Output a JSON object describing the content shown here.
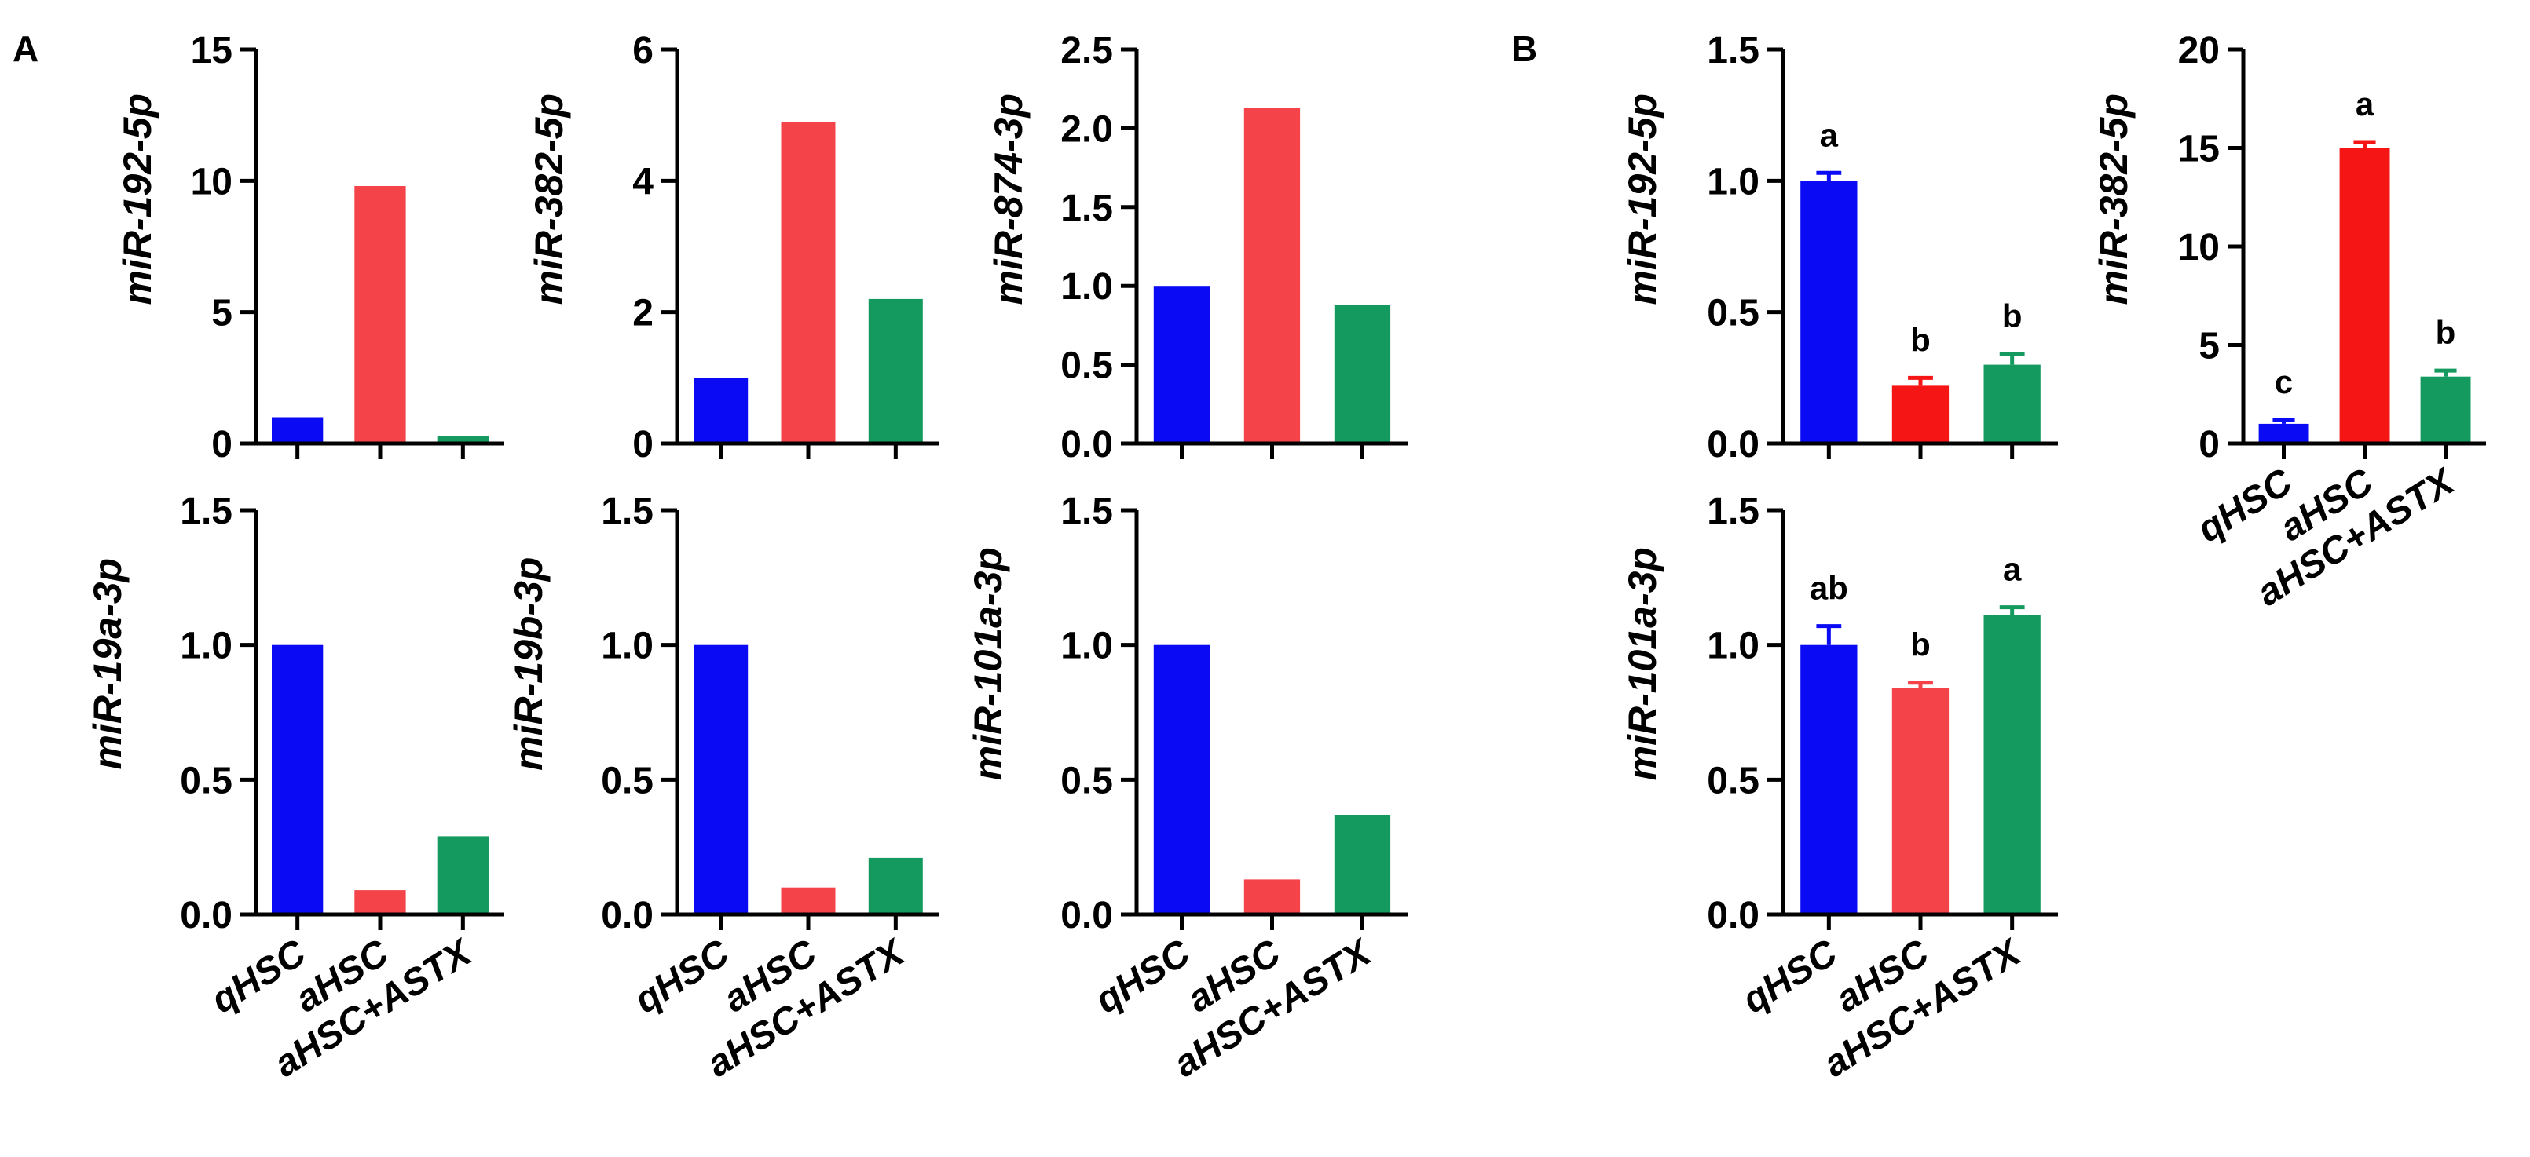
{
  "figure": {
    "panel_labels": [
      "A",
      "B"
    ],
    "categories": [
      "qHSC",
      "aHSC",
      "aHSC+ASTX"
    ],
    "colors": {
      "qHSC": "#0A0AF5",
      "aHSC": "#F5434A",
      "aHSC_bright": "#F51515",
      "astx": "#149A5E",
      "axis": "#000000"
    }
  },
  "chart_data": [
    {
      "panel": "A",
      "type": "bar",
      "ylabel": "miR-192-5p",
      "categories": [
        "qHSC",
        "aHSC",
        "aHSC+ASTX"
      ],
      "values": [
        1.0,
        9.8,
        0.3
      ],
      "ylim": [
        0,
        15
      ],
      "yticks": [
        "0",
        "5",
        "10",
        "15"
      ],
      "show_category_labels": false,
      "grid": false
    },
    {
      "panel": "A",
      "type": "bar",
      "ylabel": "miR-382-5p",
      "categories": [
        "qHSC",
        "aHSC",
        "aHSC+ASTX"
      ],
      "values": [
        1.0,
        4.9,
        2.2
      ],
      "ylim": [
        0,
        6
      ],
      "yticks": [
        "0",
        "2",
        "4",
        "6"
      ],
      "show_category_labels": false,
      "grid": false
    },
    {
      "panel": "A",
      "type": "bar",
      "ylabel": "miR-874-3p",
      "categories": [
        "qHSC",
        "aHSC",
        "aHSC+ASTX"
      ],
      "values": [
        1.0,
        2.13,
        0.88
      ],
      "ylim": [
        0,
        2.5
      ],
      "yticks": [
        "0.0",
        "0.5",
        "1.0",
        "1.5",
        "2.0",
        "2.5"
      ],
      "show_category_labels": false,
      "grid": false
    },
    {
      "panel": "A",
      "type": "bar",
      "ylabel": "miR-19a-3p",
      "categories": [
        "qHSC",
        "aHSC",
        "aHSC+ASTX"
      ],
      "values": [
        1.0,
        0.09,
        0.29
      ],
      "ylim": [
        0,
        1.5
      ],
      "yticks": [
        "0.0",
        "0.5",
        "1.0",
        "1.5"
      ],
      "show_category_labels": true,
      "grid": false
    },
    {
      "panel": "A",
      "type": "bar",
      "ylabel": "miR-19b-3p",
      "categories": [
        "qHSC",
        "aHSC",
        "aHSC+ASTX"
      ],
      "values": [
        1.0,
        0.1,
        0.21
      ],
      "ylim": [
        0,
        1.5
      ],
      "yticks": [
        "0.0",
        "0.5",
        "1.0",
        "1.5"
      ],
      "show_category_labels": true,
      "grid": false
    },
    {
      "panel": "A",
      "type": "bar",
      "ylabel": "miR-101a-3p",
      "categories": [
        "qHSC",
        "aHSC",
        "aHSC+ASTX"
      ],
      "values": [
        1.0,
        0.13,
        0.37
      ],
      "ylim": [
        0,
        1.5
      ],
      "yticks": [
        "0.0",
        "0.5",
        "1.0",
        "1.5"
      ],
      "show_category_labels": true,
      "grid": false
    },
    {
      "panel": "B",
      "type": "bar",
      "ylabel": "miR-192-5p",
      "categories": [
        "qHSC",
        "aHSC",
        "aHSC+ASTX"
      ],
      "values": [
        1.0,
        0.22,
        0.3
      ],
      "errors": [
        0.03,
        0.03,
        0.04
      ],
      "significance": [
        "a",
        "b",
        "b"
      ],
      "ylim": [
        0,
        1.5
      ],
      "yticks": [
        "0.0",
        "0.5",
        "1.0",
        "1.5"
      ],
      "show_category_labels": false,
      "grid": false
    },
    {
      "panel": "B",
      "type": "bar",
      "ylabel": "miR-382-5p",
      "categories": [
        "qHSC",
        "aHSC",
        "aHSC+ASTX"
      ],
      "values": [
        1.0,
        15.0,
        3.4
      ],
      "errors": [
        0.2,
        0.3,
        0.3
      ],
      "significance": [
        "c",
        "a",
        "b"
      ],
      "ylim": [
        0,
        20
      ],
      "yticks": [
        "0",
        "5",
        "10",
        "15",
        "20"
      ],
      "show_category_labels": true,
      "grid": false
    },
    {
      "panel": "B",
      "type": "bar",
      "ylabel": "miR-101a-3p",
      "categories": [
        "qHSC",
        "aHSC",
        "aHSC+ASTX"
      ],
      "values": [
        1.0,
        0.84,
        1.11
      ],
      "errors": [
        0.07,
        0.02,
        0.03
      ],
      "significance": [
        "ab",
        "b",
        "a"
      ],
      "ylim": [
        0,
        1.5
      ],
      "yticks": [
        "0.0",
        "0.5",
        "1.0",
        "1.5"
      ],
      "show_category_labels": true,
      "grid": false
    }
  ]
}
